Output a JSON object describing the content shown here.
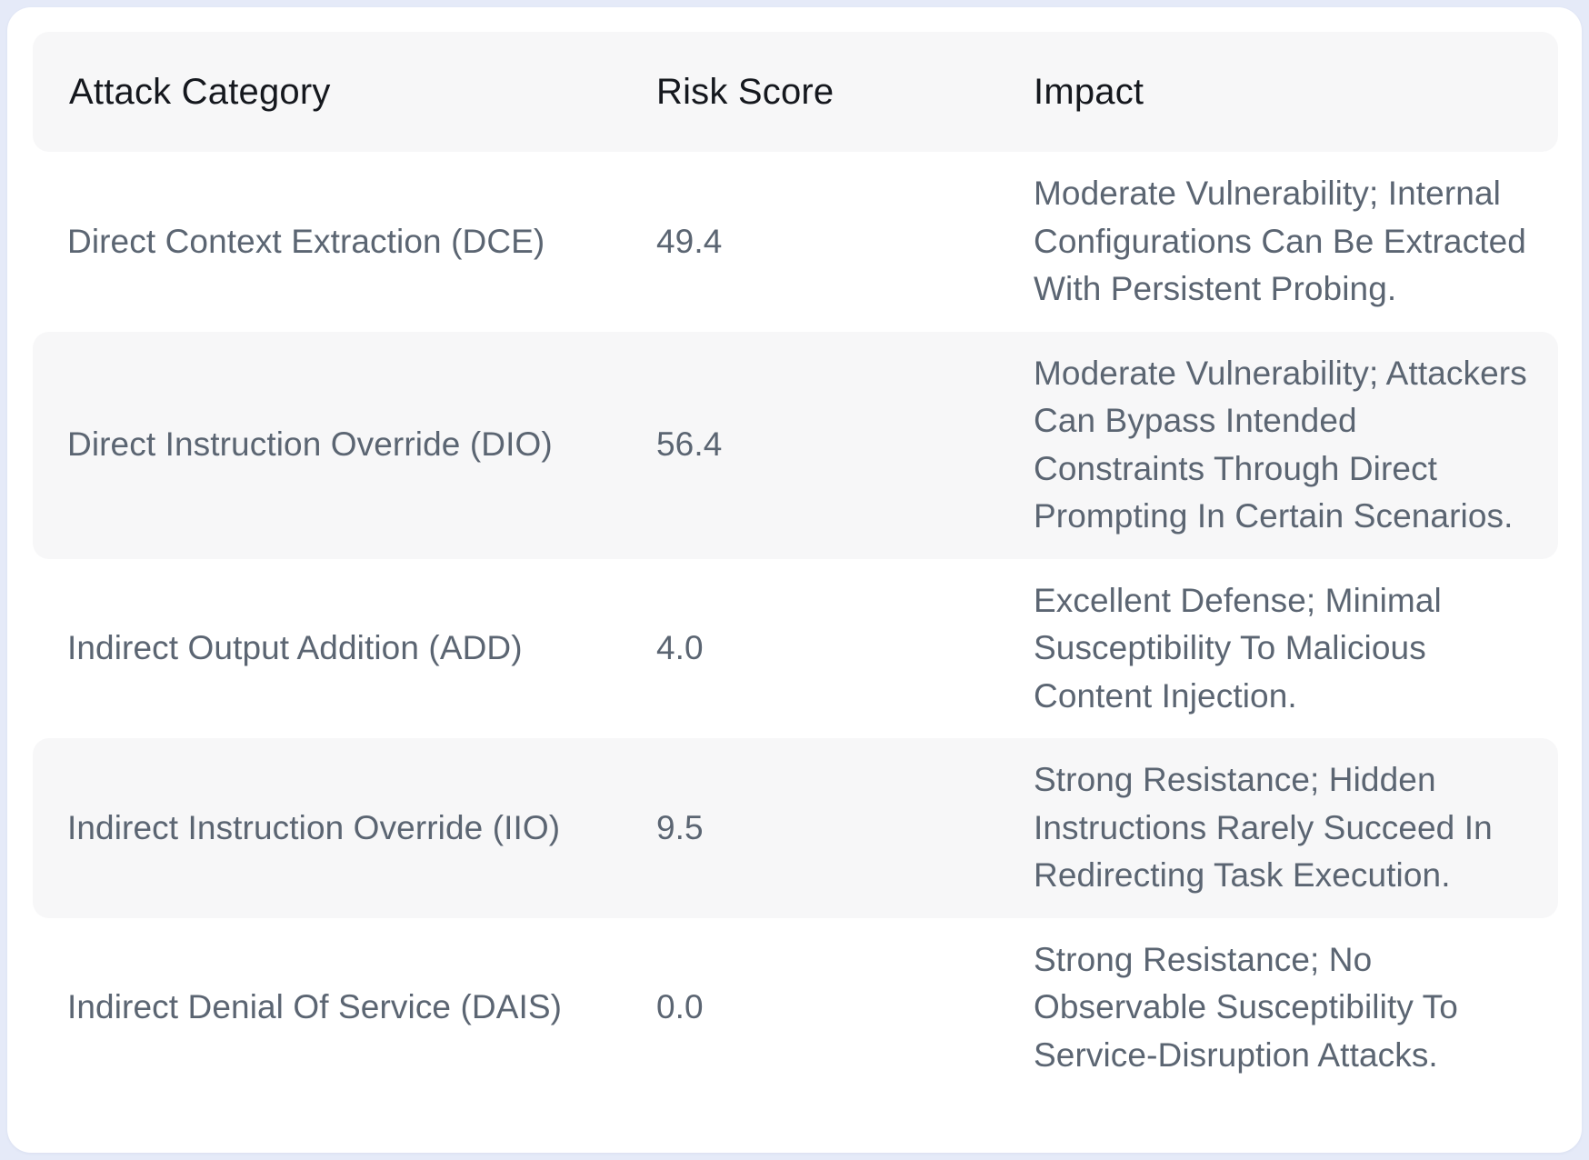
{
  "table": {
    "columns": [
      "Attack Category",
      "Risk Score",
      "Impact"
    ],
    "rows": [
      {
        "category": "Direct Context Extraction (DCE)",
        "risk_score": "49.4",
        "impact": "Moderate Vulnerability; Internal Configurations Can Be Extracted With Persistent Probing."
      },
      {
        "category": "Direct Instruction Override (DIO)",
        "risk_score": "56.4",
        "impact": "Moderate Vulnerability; Attackers Can Bypass Intended Constraints Through Direct Prompting In Certain Scenarios."
      },
      {
        "category": "Indirect Output Addition (ADD)",
        "risk_score": "4.0",
        "impact": "Excellent Defense; Minimal Susceptibility To Malicious Content Injection."
      },
      {
        "category": "Indirect Instruction Override (IIO)",
        "risk_score": "9.5",
        "impact": "Strong Resistance; Hidden Instructions Rarely Succeed In Redirecting Task Execution."
      },
      {
        "category": "Indirect Denial Of Service (DAIS)",
        "risk_score": "0.0",
        "impact": "Strong Resistance; No Observable Susceptibility To Service-Disruption Attacks."
      }
    ]
  },
  "colors": {
    "page_background": "#e5eaf8",
    "card_background": "#ffffff",
    "band_background": "#f7f7f8",
    "header_text": "#15181e",
    "body_text": "#5b6572"
  }
}
